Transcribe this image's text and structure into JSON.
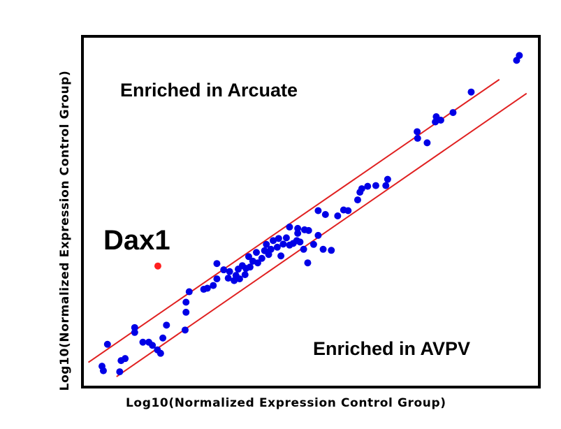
{
  "chart_data": {
    "type": "scatter",
    "xlabel": "Log10(Normalized Expression Control Group)",
    "ylabel": "Log10(Normalized Expression Control Group)",
    "annotations": {
      "upper_region": "Enriched in Arcuate",
      "lower_region": "Enriched in AVPV",
      "highlight": "Dax1"
    },
    "xlim": [
      0,
      100
    ],
    "ylim": [
      0,
      100
    ],
    "grid": false,
    "ticks": false,
    "colors": {
      "points": "#0000e6",
      "highlight": "#ff2020",
      "lines": "#e02020",
      "frame": "#000000"
    },
    "reference_lines": [
      {
        "name": "upper",
        "x": [
          1,
          91.5
        ],
        "y": [
          6.7,
          88
        ]
      },
      {
        "name": "lower",
        "x": [
          7.2,
          97.5
        ],
        "y": [
          2.6,
          84
        ]
      }
    ],
    "points": [
      [
        4,
        5.6
      ],
      [
        4.3,
        4.3
      ],
      [
        5.2,
        11.9
      ],
      [
        7.9,
        4
      ],
      [
        8.2,
        7.2
      ],
      [
        9.1,
        7.8
      ],
      [
        11.2,
        16.7
      ],
      [
        11.2,
        15.3
      ],
      [
        13,
        12.5
      ],
      [
        14.3,
        12.5
      ],
      [
        15.1,
        11.6
      ],
      [
        16.2,
        10.3
      ],
      [
        16.9,
        9.3
      ],
      [
        17.4,
        13.7
      ],
      [
        18.2,
        17.4
      ],
      [
        22.3,
        16
      ],
      [
        22.5,
        21.1
      ],
      [
        22.5,
        24
      ],
      [
        23.2,
        27
      ],
      [
        26.4,
        27.7
      ],
      [
        27.2,
        28
      ],
      [
        28.5,
        28.8
      ],
      [
        29.3,
        30.7
      ],
      [
        29.3,
        35.1
      ],
      [
        30.8,
        33.3
      ],
      [
        31.8,
        30.9
      ],
      [
        32.1,
        32.8
      ],
      [
        33.1,
        30.2
      ],
      [
        33.5,
        31.7
      ],
      [
        34,
        33.5
      ],
      [
        34.3,
        30.7
      ],
      [
        34.9,
        34.5
      ],
      [
        35.5,
        31.9
      ],
      [
        35.7,
        33.7
      ],
      [
        36.6,
        34.1
      ],
      [
        36.3,
        37.1
      ],
      [
        37.2,
        35.8
      ],
      [
        38,
        38.3
      ],
      [
        38.3,
        35.3
      ],
      [
        39.2,
        36.6
      ],
      [
        39.8,
        38.8
      ],
      [
        40.2,
        40.6
      ],
      [
        40.7,
        37.7
      ],
      [
        41.2,
        39.2
      ],
      [
        41.7,
        41.7
      ],
      [
        42.6,
        39.8
      ],
      [
        42.9,
        42.3
      ],
      [
        43.4,
        37.3
      ],
      [
        43.9,
        40.7
      ],
      [
        44.6,
        42.5
      ],
      [
        45.3,
        45.6
      ],
      [
        45.3,
        40.4
      ],
      [
        46.1,
        40.9
      ],
      [
        46.9,
        41.7
      ],
      [
        47.1,
        43.8
      ],
      [
        47.1,
        45.2
      ],
      [
        47.6,
        41.3
      ],
      [
        48.6,
        44.8
      ],
      [
        49.3,
        35.3
      ],
      [
        48.4,
        39.2
      ],
      [
        49.5,
        44.6
      ],
      [
        50.6,
        40.6
      ],
      [
        51.6,
        50.3
      ],
      [
        51.6,
        43.2
      ],
      [
        52.7,
        39.2
      ],
      [
        53.2,
        49.2
      ],
      [
        54.5,
        38.9
      ],
      [
        55.9,
        48.8
      ],
      [
        57.2,
        50.5
      ],
      [
        58.2,
        50.3
      ],
      [
        60.3,
        53.4
      ],
      [
        60.8,
        55.6
      ],
      [
        61.2,
        56.6
      ],
      [
        62.5,
        57.3
      ],
      [
        64.3,
        57.5
      ],
      [
        66.5,
        57.5
      ],
      [
        66.9,
        59.3
      ],
      [
        73.5,
        71.1
      ],
      [
        73.4,
        73
      ],
      [
        75.6,
        69.8
      ],
      [
        77.4,
        75.8
      ],
      [
        77.6,
        77.3
      ],
      [
        78.6,
        76.3
      ],
      [
        81.3,
        78.5
      ],
      [
        85.3,
        84.4
      ],
      [
        95.3,
        93.5
      ],
      [
        95.9,
        94.9
      ]
    ],
    "highlight_point": {
      "label": "Dax1",
      "x": 16.3,
      "y": 34.4
    }
  }
}
